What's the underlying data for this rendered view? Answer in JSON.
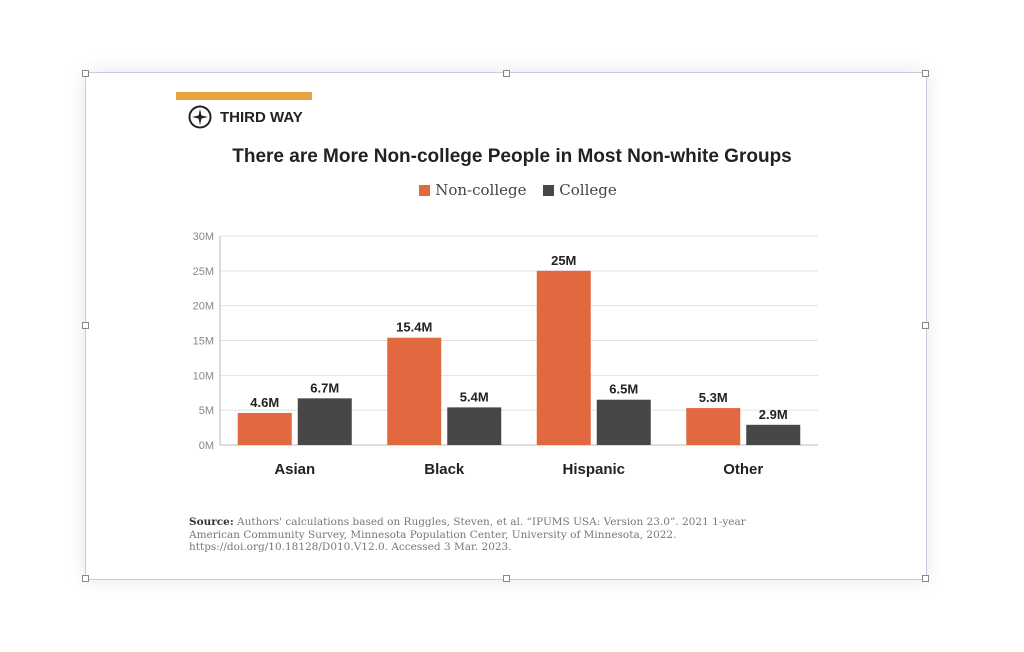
{
  "brand": {
    "name": "THIRD WAY",
    "accent_color": "#e9a23b"
  },
  "chart_data": {
    "type": "bar",
    "title": "There are More Non-college People in Most Non-white Groups",
    "categories": [
      "Asian",
      "Black",
      "Hispanic",
      "Other"
    ],
    "series": [
      {
        "name": "Non-college",
        "color": "#e2683f",
        "values": [
          4.6,
          15.4,
          25,
          5.3
        ],
        "labels": [
          "4.6M",
          "15.4M",
          "25M",
          "5.3M"
        ]
      },
      {
        "name": "College",
        "color": "#474747",
        "values": [
          6.7,
          5.4,
          6.5,
          2.9
        ],
        "labels": [
          "6.7M",
          "5.4M",
          "6.5M",
          "2.9M"
        ]
      }
    ],
    "ylim": [
      0,
      30
    ],
    "yticks": [
      "0M",
      "5M",
      "10M",
      "15M",
      "20M",
      "25M",
      "30M"
    ],
    "grid": true,
    "legend": "top-center"
  },
  "source": {
    "label": "Source:",
    "text": "Authors' calculations based on Ruggles, Steven, et al. “IPUMS USA: Version 23.0”. 2021 1-year American Community Survey, Minnesota Population Center, University of Minnesota, 2022. https://doi.org/10.18128/D010.V12.0. Accessed 3 Mar. 2023."
  }
}
